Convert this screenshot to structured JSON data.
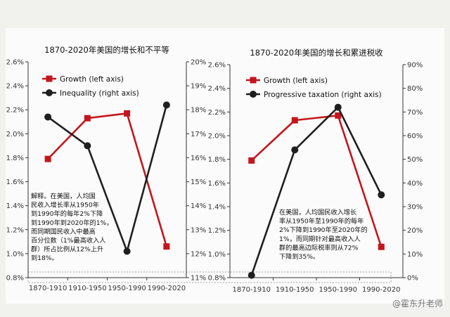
{
  "chart_data": [
    {
      "type": "line",
      "title": "1870-2020年美国的增长和不平等",
      "categories": [
        "1870-1910",
        "1910-1950",
        "1950-1990",
        "1990-2020"
      ],
      "y_left": {
        "ylim": [
          0.8,
          2.6
        ],
        "ticks": [
          "0.8%",
          "1.0%",
          "1.2%",
          "1.4%",
          "1.6%",
          "1.8%",
          "2.0%",
          "2.2%",
          "2.4%",
          "2.6%"
        ]
      },
      "y_right": {
        "ylim": [
          11,
          20
        ],
        "ticks": [
          "11%",
          "12%",
          "13%",
          "14%",
          "15%",
          "16%",
          "17%",
          "18%",
          "19%",
          "20%"
        ]
      },
      "series": [
        {
          "name": "Growth (left axis)",
          "axis": "left",
          "color": "#c3161c",
          "marker": "square",
          "values": [
            1.79,
            2.13,
            2.17,
            1.06
          ]
        },
        {
          "name": "Inequality (right axis)",
          "axis": "right",
          "color": "#1f1f1f",
          "marker": "circle",
          "values": [
            17.7,
            16.5,
            12.1,
            18.2
          ]
        }
      ],
      "annotation": [
        "解释。在美国，人均国",
        "民收入增长率从1950年",
        "到1990年的每年2%下降",
        "到1990年到2020年的1%，",
        "而同期国民收入中最高",
        "百分位数（1%最高收入人",
        "群）所占比例从12%上升",
        "到18%。"
      ],
      "legend_position": "top-left",
      "grid": false
    },
    {
      "type": "line",
      "title": "1870-2020年美国的增长和累进税收",
      "categories": [
        "1870-1910",
        "1910-1950",
        "1950-1990",
        "1990-2020"
      ],
      "y_left": {
        "ylim": [
          0.8,
          2.6
        ],
        "ticks": [
          "0.8%",
          "1.0%",
          "1.2%",
          "1.4%",
          "1.6%",
          "1.8%",
          "2.0%",
          "2.2%",
          "2.4%",
          "2.6%"
        ]
      },
      "y_right": {
        "ylim": [
          0,
          90
        ],
        "ticks": [
          "0%",
          "10%",
          "20%",
          "30%",
          "40%",
          "50%",
          "60%",
          "70%",
          "80%",
          "90%"
        ]
      },
      "series": [
        {
          "name": "Growth (left axis)",
          "axis": "left",
          "color": "#c3161c",
          "marker": "square",
          "values": [
            1.79,
            2.13,
            2.17,
            1.06
          ]
        },
        {
          "name": "Progressive taxation (right axis)",
          "axis": "right",
          "color": "#1f1f1f",
          "marker": "circle",
          "values": [
            1,
            54,
            72,
            35
          ]
        }
      ],
      "annotation": [
        "在美国，人均国民收入增长",
        "率从1950年至1990年的每年",
        "2%下降到1990年至2020年的",
        "1%，而同期针对最高收入人",
        "群的最高边际税率则从72%",
        "下降到35%。"
      ],
      "legend_position": "top-left",
      "grid": false
    }
  ],
  "watermark": "@霍东升老师"
}
